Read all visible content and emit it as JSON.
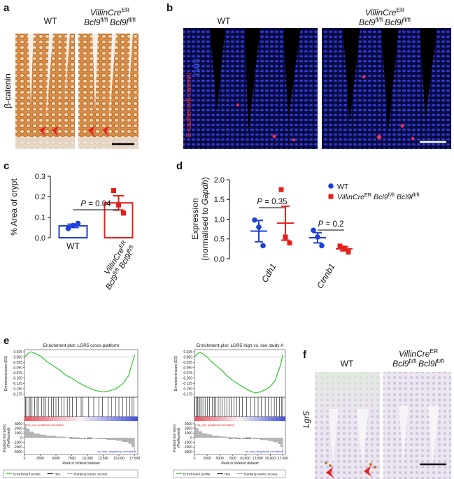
{
  "panels": {
    "a": {
      "label": "a",
      "wt": "WT",
      "stain": "β-catenin",
      "genotype": [
        [
          {
            "text": "VillinCre",
            "italic": true
          },
          {
            "text": "ER",
            "sup": true
          }
        ],
        [
          {
            "text": "Bcl9",
            "italic": true
          },
          {
            "text": "fl/fl",
            "sup": true
          },
          {
            "text": "Bcl9l",
            "italic": true
          },
          {
            "text": "fl/fl",
            "sup": true
          }
        ]
      ]
    },
    "b": {
      "label": "b",
      "wt": "WT",
      "stain": "E-cadherin/β-catenin",
      "counterstain": "DAPI",
      "genotype": [
        [
          {
            "text": "VillinCre",
            "italic": true
          },
          {
            "text": "ER",
            "sup": true
          }
        ],
        [
          {
            "text": "Bcl9",
            "italic": true
          },
          {
            "text": "fl/fl",
            "sup": true
          },
          {
            "text": "Bcl9l",
            "italic": true
          },
          {
            "text": "fl/fl",
            "sup": true
          }
        ]
      ]
    },
    "c": {
      "label": "c"
    },
    "d": {
      "label": "d"
    },
    "e": {
      "label": "e"
    },
    "f": {
      "label": "f",
      "wt": "WT",
      "stain": "Lgr5",
      "genotype": [
        [
          {
            "text": "VillinCre",
            "italic": true
          },
          {
            "text": "ER",
            "sup": true
          }
        ],
        [
          {
            "text": "Bcl9",
            "italic": true
          },
          {
            "text": "fl/fl",
            "sup": true
          },
          {
            "text": "Bcl9l",
            "italic": true
          },
          {
            "text": "fl/fl",
            "sup": true
          }
        ]
      ]
    }
  },
  "chart_data": [
    {
      "type": "bar",
      "ylabel": "% Area of crypt",
      "categories": [
        "WT",
        [
          [
            {
              "text": "VillinCre",
              "italic": true
            },
            {
              "text": "ER",
              "sup": true
            }
          ],
          [
            {
              "text": "Bcl9",
              "italic": true
            },
            {
              "text": "fl/fl",
              "sup": true
            },
            {
              "text": "Bcl9l",
              "italic": true
            },
            {
              "text": "fl/fl",
              "sup": true
            }
          ]
        ]
      ],
      "values": [
        0.058,
        0.17
      ],
      "errors": [
        0.008,
        0.035
      ],
      "points": [
        [
          0.045,
          0.06,
          0.07
        ],
        [
          0.23,
          0.16,
          0.12
        ]
      ],
      "colors": [
        "#1f3fd8",
        "#e3201c"
      ],
      "markers": [
        "circle",
        "square"
      ],
      "ylim": [
        0,
        0.3
      ],
      "yticks": [
        {
          "value": 0,
          "label": "0.0"
        },
        0.1,
        0.2,
        0.3
      ],
      "annotations": [
        {
          "text": [
            [
              {
                "text": "P",
                "italic": true
              },
              {
                "text": " = 0.04"
              }
            ]
          ]
        }
      ]
    },
    {
      "type": "dot",
      "ylabel": [
        [
          {
            "text": "Expression"
          }
        ],
        [
          {
            "text": "(normalised to "
          },
          {
            "text": "Gapdh",
            "italic": true
          },
          {
            "text": ")"
          }
        ]
      ],
      "categories": [
        "Cdh1",
        "Ctnnb1"
      ],
      "series": [
        {
          "name": [
            [
              {
                "text": "WT"
              }
            ]
          ],
          "color": "#1f3fd8",
          "marker": "circle",
          "values": [
            0.7,
            0.53
          ],
          "errors": [
            0.27,
            0.13
          ],
          "points": [
            [
              0.98,
              0.8,
              0.33
            ],
            [
              0.72,
              0.55,
              0.33
            ]
          ]
        },
        {
          "name": [
            [
              {
                "text": "VillinCre",
                "italic": true
              },
              {
                "text": "ER",
                "sup": true
              },
              {
                "text": "Bcl9",
                "italic": true
              },
              {
                "text": "fl/fl",
                "sup": true
              },
              {
                "text": "Bcl9l",
                "italic": true
              },
              {
                "text": "fl/fl",
                "sup": true
              }
            ]
          ],
          "color": "#e3201c",
          "marker": "square",
          "values": [
            0.9,
            0.25
          ],
          "errors": [
            0.43,
            0.05
          ],
          "points": [
            [
              1.75,
              0.55,
              0.4
            ],
            [
              0.32,
              0.27,
              0.17
            ]
          ]
        }
      ],
      "ylim": [
        0,
        2
      ],
      "yticks": [
        {
          "value": 0,
          "label": "0.0"
        },
        0.5,
        {
          "value": 1,
          "label": "1.0"
        },
        1.5,
        {
          "value": 2,
          "label": "2.0"
        }
      ],
      "annotations": [
        {
          "text": [
            [
              {
                "text": "P",
                "italic": true
              },
              {
                "text": " = 0.35"
              }
            ]
          ]
        },
        {
          "text": [
            [
              {
                "text": "P",
                "italic": true
              },
              {
                "text": " = 0.2"
              }
            ]
          ]
        }
      ]
    },
    {
      "type": "gsea",
      "title": "Enrichment plot: LGR5 cross-platform",
      "ylabel": "Enrichment score (ES)",
      "xlabel": "Rank in ordered dataset",
      "xlim": [
        0,
        18000
      ],
      "xticks": [
        0,
        2500,
        5000,
        7500,
        {
          "value": 10000,
          "label": "10,000"
        },
        {
          "value": 12500,
          "label": "12,500"
        },
        {
          "value": 15000,
          "label": "15,000"
        },
        {
          "value": 17500,
          "label": "17,500"
        }
      ],
      "ylim": [
        -0.19,
        0.035
      ],
      "yticks": [
        0.025,
        {
          "value": 0,
          "label": "0.000"
        },
        -0.025,
        {
          "value": -0.05,
          "label": "-0.050"
        },
        -0.075,
        {
          "value": -0.1,
          "label": "-0.100"
        },
        -0.125,
        {
          "value": -0.15,
          "label": "-0.150"
        },
        -0.175
      ],
      "x": [
        0,
        500,
        1000,
        1500,
        2500,
        3500,
        4500,
        5500,
        6500,
        7500,
        8500,
        9500,
        10500,
        11500,
        12500,
        13500,
        14500,
        15500,
        16500,
        17200,
        17500
      ],
      "values": [
        0,
        0.015,
        0.025,
        0.02,
        0.005,
        -0.02,
        -0.04,
        -0.06,
        -0.085,
        -0.1,
        -0.12,
        -0.135,
        -0.15,
        -0.16,
        -0.165,
        -0.16,
        -0.15,
        -0.13,
        -0.09,
        -0.02,
        0.01
      ],
      "color": "#2dc82d",
      "hits": [
        150,
        400,
        700,
        900,
        1200,
        1600,
        2000,
        2300,
        2700,
        3100,
        3400,
        3800,
        4300,
        4600,
        5000,
        5400,
        5900,
        6300,
        6800,
        7200,
        7600,
        8300,
        9000,
        9300,
        10200,
        11000,
        11800,
        12400,
        13300,
        13800,
        14500,
        15000,
        15600,
        16200,
        16700,
        17100,
        17400
      ],
      "metric": {
        "ylabel": [
          "Ranked list metric",
          "(PreRanked)"
        ],
        "ylim": [
          -3600,
          3600
        ],
        "yticks": [
          3000,
          2000,
          1000,
          0,
          -1000,
          -2000,
          -3000
        ],
        "x": [
          0,
          300,
          800,
          1500,
          2500,
          3500,
          5000,
          6500,
          8681,
          10000,
          11500,
          13000,
          14500,
          15500,
          16500,
          17000,
          17400
        ],
        "values": [
          3000,
          2000,
          1300,
          900,
          650,
          450,
          250,
          100,
          0,
          -150,
          -300,
          -450,
          -650,
          -900,
          -1300,
          -2000,
          -3000
        ]
      },
      "pos_label": "'na_pos' (positively correlated)",
      "neg_label": "'na_neg' (negatively correlated)",
      "zero_cross": "Zero cross at 8681",
      "legend": [
        {
          "text": "Enrichment profile",
          "color": "#2dc82d"
        },
        {
          "text": "Hits",
          "color": "#000000"
        },
        {
          "text": "Ranking metric scores",
          "color": "#a0a0a0"
        }
      ]
    },
    {
      "type": "gsea",
      "title": "Enrichment plot: LGR5 high vs. low study A",
      "ylabel": "Enrichment score (ES)",
      "xlabel": "Rank in ordered dataset",
      "xlim": [
        0,
        18000
      ],
      "xticks": [
        0,
        2500,
        5000,
        7500,
        {
          "value": 10000,
          "label": "10,000"
        },
        {
          "value": 12500,
          "label": "12,500"
        },
        {
          "value": 15000,
          "label": "15,000"
        },
        {
          "value": 17500,
          "label": "17,500"
        }
      ],
      "ylim": [
        -0.19,
        0.035
      ],
      "yticks": [
        0.025,
        {
          "value": 0,
          "label": "0.000"
        },
        -0.025,
        {
          "value": -0.05,
          "label": "-0.050"
        },
        -0.075,
        {
          "value": -0.1,
          "label": "-0.100"
        },
        -0.125,
        {
          "value": -0.15,
          "label": "-0.150"
        },
        -0.175
      ],
      "x": [
        0,
        500,
        1000,
        1500,
        2500,
        3500,
        4500,
        5500,
        6500,
        7500,
        8500,
        9500,
        10500,
        11500,
        12000,
        13000,
        14000,
        15000,
        16000,
        17000,
        17500
      ],
      "values": [
        0,
        0.014,
        0.022,
        0.018,
        0.0,
        -0.025,
        -0.045,
        -0.065,
        -0.09,
        -0.11,
        -0.125,
        -0.14,
        -0.155,
        -0.165,
        -0.17,
        -0.165,
        -0.155,
        -0.14,
        -0.11,
        -0.04,
        0.01
      ],
      "color": "#2dc82d",
      "hits": [
        100,
        350,
        600,
        850,
        1100,
        1500,
        1900,
        2200,
        2600,
        3000,
        3500,
        3900,
        4200,
        4700,
        5100,
        5500,
        6000,
        6400,
        6900,
        7300,
        7800,
        8400,
        8900,
        9500,
        10300,
        11100,
        11900,
        12600,
        13200,
        14000,
        14600,
        15200,
        15800,
        16300,
        16800,
        17200,
        17450
      ],
      "metric": {
        "ylabel": [
          "Ranked list metric",
          "(PreRanked)"
        ],
        "ylim": [
          -3600,
          3600
        ],
        "yticks": [
          3000,
          2000,
          1000,
          0,
          -1000,
          -2000,
          -3000
        ],
        "x": [
          0,
          300,
          800,
          1500,
          2500,
          3500,
          5000,
          6500,
          8681,
          10000,
          11500,
          13000,
          14500,
          15500,
          16500,
          17000,
          17400
        ],
        "values": [
          3000,
          2100,
          1400,
          950,
          700,
          450,
          250,
          100,
          0,
          -150,
          -300,
          -500,
          -700,
          -950,
          -1350,
          -2000,
          -3000
        ]
      },
      "pos_label": "'na_pos' (positively correlated)",
      "neg_label": "'na_neg' (negatively correlated)",
      "zero_cross": "Zero cross at 8681",
      "legend": [
        {
          "text": "Enrichment profile",
          "color": "#2dc82d"
        },
        {
          "text": "Hits",
          "color": "#000000"
        },
        {
          "text": "Ranking metric scores",
          "color": "#a0a0a0"
        }
      ]
    }
  ]
}
